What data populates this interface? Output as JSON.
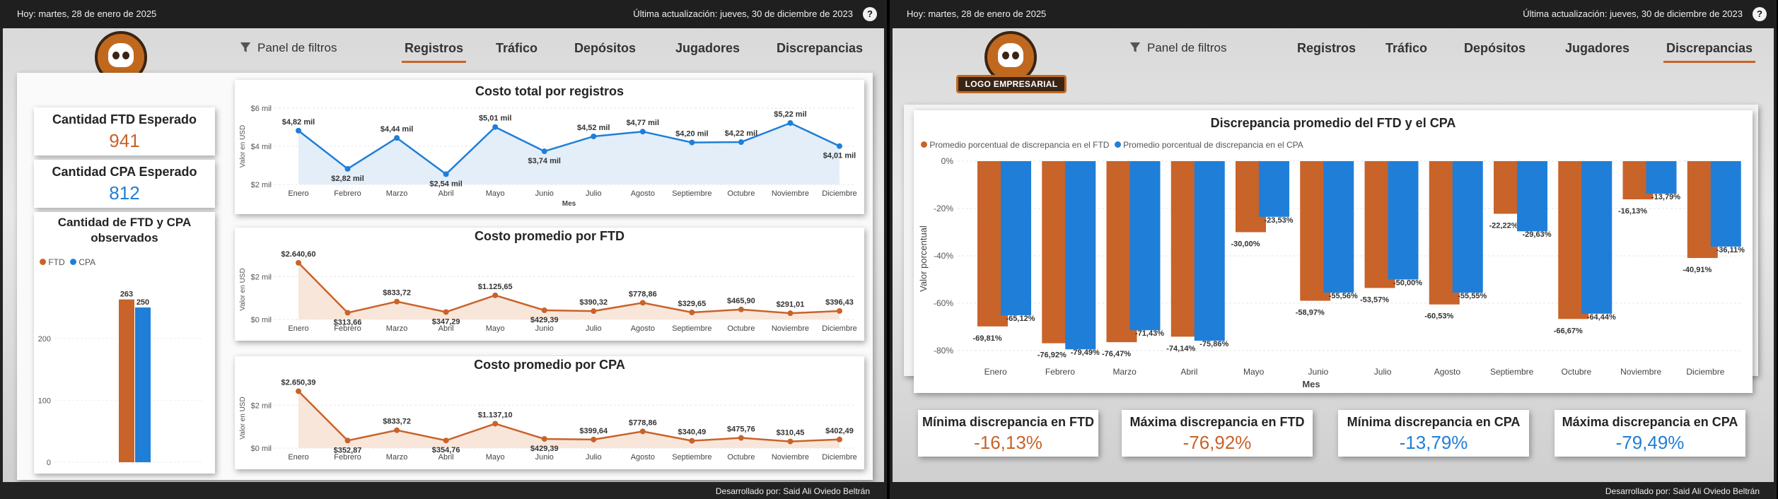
{
  "header": {
    "date": "Hoy: martes, 28 de enero de 2025",
    "updated": "Última actualización: jueves, 30 de diciembre de 2023",
    "help": "?"
  },
  "footer": {
    "credit": "Desarrollado por: Said Ali Oviedo Beltrán"
  },
  "logo": {
    "text": "LOGO EMPRESARIAL"
  },
  "filters_label": "Panel de filtros",
  "nav": [
    "Registros",
    "Tráfico",
    "Depósitos",
    "Jugadores",
    "Discrepancias"
  ],
  "colors": {
    "ftd": "#c8632a",
    "cpa": "#1f7fd8",
    "accent": "#c8632a"
  },
  "left": {
    "active_tab": "Registros",
    "kpis": [
      {
        "label": "Cantidad FTD Esperado",
        "value": "941",
        "color": "#c8632a"
      },
      {
        "label": "Cantidad CPA Esperado",
        "value": "812",
        "color": "#1f7fd8"
      }
    ],
    "observed": {
      "title": "Cantidad de FTD y CPA observados",
      "legend": [
        "FTD",
        "CPA"
      ],
      "chart_data": {
        "type": "bar",
        "categories": [
          ""
        ],
        "series": [
          {
            "name": "FTD",
            "values": [
              263
            ]
          },
          {
            "name": "CPA",
            "values": [
              250
            ]
          }
        ],
        "yticks": [
          "0",
          "100",
          "200"
        ],
        "ylim": [
          0,
          290
        ]
      }
    },
    "charts": [
      {
        "title": "Costo total por registros",
        "ylabel": "Valor en USD",
        "xlabel": "Mes",
        "color": "#1f7fd8",
        "fill": "#e3eef9",
        "yticks": [
          "$2 mil",
          "$4 mil",
          "$6 mil"
        ],
        "chart_data": {
          "type": "area",
          "categories": [
            "Enero",
            "Febrero",
            "Marzo",
            "Abril",
            "Mayo",
            "Junio",
            "Julio",
            "Agosto",
            "Septiembre",
            "Octubre",
            "Noviembre",
            "Diciembre"
          ],
          "values": [
            4.82,
            2.82,
            4.44,
            2.54,
            5.01,
            3.74,
            4.52,
            4.77,
            4.2,
            4.22,
            5.22,
            4.01
          ],
          "labels": [
            "$4,82 mil",
            "$2,82 mil",
            "$4,44 mil",
            "$2,54 mil",
            "$5,01 mil",
            "$3,74 mil",
            "$4,52 mil",
            "$4,77 mil",
            "$4,20 mil",
            "$4,22 mil",
            "$5,22 mil",
            "$4,01 mil"
          ],
          "ylim": [
            2,
            6
          ]
        }
      },
      {
        "title": "Costo promedio por FTD",
        "ylabel": "Valor en USD",
        "xlabel": "",
        "color": "#c8632a",
        "fill": "#f8e6da",
        "yticks": [
          "$0 mil",
          "$2 mil"
        ],
        "chart_data": {
          "type": "area",
          "categories": [
            "Enero",
            "Febrero",
            "Marzo",
            "Abril",
            "Mayo",
            "Junio",
            "Julio",
            "Agosto",
            "Septiembre",
            "Octubre",
            "Noviembre",
            "Diciembre"
          ],
          "values": [
            2640.6,
            313.66,
            833.72,
            347.29,
            1125.65,
            429.39,
            390.32,
            778.86,
            329.65,
            465.9,
            291.01,
            396.43
          ],
          "labels": [
            "$2.640,60",
            "$313,66",
            "$833,72",
            "$347,29",
            "$1.125,65",
            "$429,39",
            "$390,32",
            "$778,86",
            "$329,65",
            "$465,90",
            "$291,01",
            "$396,43"
          ],
          "ylim": [
            0,
            2800
          ]
        }
      },
      {
        "title": "Costo promedio por CPA",
        "ylabel": "Valor en USD",
        "xlabel": "",
        "color": "#c8632a",
        "fill": "#f8e6da",
        "yticks": [
          "$0 mil",
          "$2 mil"
        ],
        "chart_data": {
          "type": "area",
          "categories": [
            "Enero",
            "Febrero",
            "Marzo",
            "Abril",
            "Mayo",
            "Junio",
            "Julio",
            "Agosto",
            "Septiembre",
            "Octubre",
            "Noviembre",
            "Diciembre"
          ],
          "values": [
            2650.39,
            352.87,
            833.72,
            354.76,
            1137.1,
            429.39,
            399.64,
            778.86,
            340.49,
            475.76,
            310.45,
            402.49
          ],
          "labels": [
            "$2.650,39",
            "$352,87",
            "$833,72",
            "$354,76",
            "$1.137,10",
            "$429,39",
            "$399,64",
            "$778,86",
            "$340,49",
            "$475,76",
            "$310,45",
            "$402,49"
          ],
          "ylim": [
            0,
            2800
          ]
        }
      }
    ]
  },
  "right": {
    "active_tab": "Discrepancias",
    "chart": {
      "title": "Discrepancia promedio del FTD y el CPA",
      "legend": [
        "Promedio porcentual de discrepancia en el FTD",
        "Promedio porcentual de discrepancia en el CPA"
      ],
      "ylabel": "Valor porcentual",
      "xlabel": "Mes",
      "yticks": [
        "0%",
        "-20%",
        "-40%",
        "-60%",
        "-80%"
      ],
      "chart_data": {
        "type": "bar",
        "categories": [
          "Enero",
          "Febrero",
          "Marzo",
          "Abril",
          "Mayo",
          "Junio",
          "Julio",
          "Agosto",
          "Septiembre",
          "Octubre",
          "Noviembre",
          "Diciembre"
        ],
        "series": [
          {
            "name": "Promedio porcentual de discrepancia en el FTD",
            "values": [
              -69.81,
              -76.92,
              -76.47,
              -74.14,
              -30.0,
              -58.97,
              -53.57,
              -60.53,
              -22.22,
              -66.67,
              -16.13,
              -40.91
            ],
            "labels": [
              "-69,81%",
              "-76,92%",
              "-76,47%",
              "-74,14%",
              "-30,00%",
              "-58,97%",
              "-53,57%",
              "-60,53%",
              "-22,22%",
              "-66,67%",
              "-16,13%",
              "-40,91%"
            ]
          },
          {
            "name": "Promedio porcentual de discrepancia en el CPA",
            "values": [
              -65.12,
              -79.49,
              -71.43,
              -75.86,
              -23.53,
              -55.56,
              -50.0,
              -55.55,
              -29.63,
              -64.44,
              -13.79,
              -36.11
            ],
            "labels": [
              "-65,12%",
              "-79,49%",
              "-71,43%",
              "-75,86%",
              "-23,53%",
              "-55,56%",
              "-50,00%",
              "-55,55%",
              "-29,63%",
              "-64,44%",
              "-13,79%",
              "-36,11%"
            ]
          }
        ],
        "ylim": [
          -83,
          0
        ]
      }
    },
    "kpis": [
      {
        "label": "Mínima discrepancia en FTD",
        "value": "-16,13%",
        "color": "#c8632a"
      },
      {
        "label": "Máxima discrepancia en FTD",
        "value": "-76,92%",
        "color": "#c8632a"
      },
      {
        "label": "Mínima discrepancia en CPA",
        "value": "-13,79%",
        "color": "#1f7fd8"
      },
      {
        "label": "Máxima discrepancia en CPA",
        "value": "-79,49%",
        "color": "#1f7fd8"
      }
    ]
  }
}
